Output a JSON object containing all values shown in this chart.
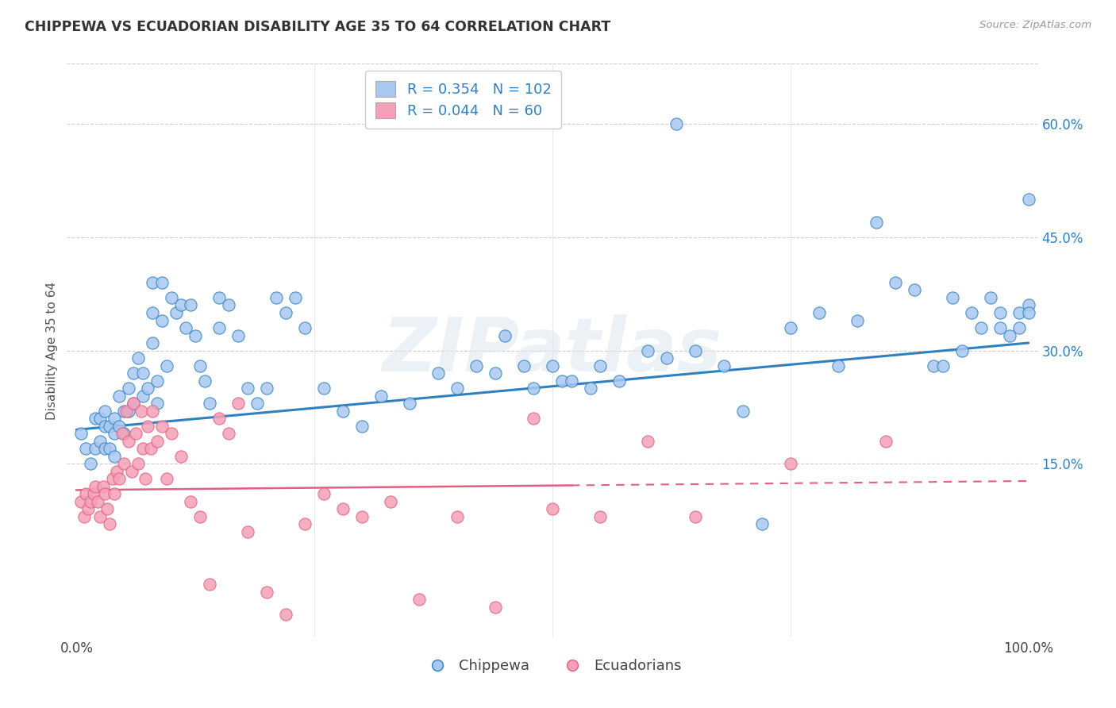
{
  "title": "CHIPPEWA VS ECUADORIAN DISABILITY AGE 35 TO 64 CORRELATION CHART",
  "source": "Source: ZipAtlas.com",
  "ylabel": "Disability Age 35 to 64",
  "legend_labels": [
    "Chippewa",
    "Ecuadorians"
  ],
  "chippewa_color": "#A8C8F0",
  "ecuadorian_color": "#F5A0B8",
  "chippewa_line_color": "#3080C0",
  "ecuadorian_line_color": "#E06080",
  "chippewa_R": "0.354",
  "chippewa_N": "102",
  "ecuadorian_R": "0.044",
  "ecuadorian_N": "60",
  "background_color": "#ffffff",
  "watermark": "ZIPatlas",
  "xlim": [
    -0.01,
    1.01
  ],
  "ylim": [
    -0.08,
    0.68
  ],
  "xticks": [
    0.0,
    0.25,
    0.5,
    0.75,
    1.0
  ],
  "xtick_labels": [
    "0.0%",
    "",
    "",
    "",
    "100.0%"
  ],
  "yticks": [
    0.15,
    0.3,
    0.45,
    0.6
  ],
  "ytick_labels": [
    "15.0%",
    "30.0%",
    "45.0%",
    "60.0%"
  ],
  "chippewa_x": [
    0.005,
    0.01,
    0.015,
    0.02,
    0.02,
    0.025,
    0.025,
    0.03,
    0.03,
    0.03,
    0.035,
    0.035,
    0.04,
    0.04,
    0.04,
    0.045,
    0.045,
    0.05,
    0.05,
    0.055,
    0.055,
    0.06,
    0.06,
    0.065,
    0.07,
    0.07,
    0.075,
    0.08,
    0.08,
    0.08,
    0.085,
    0.085,
    0.09,
    0.09,
    0.095,
    0.1,
    0.105,
    0.11,
    0.115,
    0.12,
    0.125,
    0.13,
    0.135,
    0.14,
    0.15,
    0.15,
    0.16,
    0.17,
    0.18,
    0.19,
    0.2,
    0.21,
    0.22,
    0.23,
    0.24,
    0.26,
    0.28,
    0.3,
    0.32,
    0.35,
    0.38,
    0.4,
    0.42,
    0.44,
    0.45,
    0.47,
    0.48,
    0.5,
    0.51,
    0.52,
    0.54,
    0.55,
    0.57,
    0.6,
    0.62,
    0.63,
    0.65,
    0.68,
    0.7,
    0.72,
    0.75,
    0.78,
    0.8,
    0.82,
    0.84,
    0.86,
    0.88,
    0.9,
    0.91,
    0.92,
    0.93,
    0.94,
    0.95,
    0.96,
    0.97,
    0.97,
    0.98,
    0.99,
    0.99,
    1.0,
    1.0,
    1.0
  ],
  "chippewa_y": [
    0.19,
    0.17,
    0.15,
    0.21,
    0.17,
    0.21,
    0.18,
    0.22,
    0.2,
    0.17,
    0.2,
    0.17,
    0.21,
    0.19,
    0.16,
    0.24,
    0.2,
    0.22,
    0.19,
    0.25,
    0.22,
    0.27,
    0.23,
    0.29,
    0.27,
    0.24,
    0.25,
    0.39,
    0.35,
    0.31,
    0.26,
    0.23,
    0.39,
    0.34,
    0.28,
    0.37,
    0.35,
    0.36,
    0.33,
    0.36,
    0.32,
    0.28,
    0.26,
    0.23,
    0.37,
    0.33,
    0.36,
    0.32,
    0.25,
    0.23,
    0.25,
    0.37,
    0.35,
    0.37,
    0.33,
    0.25,
    0.22,
    0.2,
    0.24,
    0.23,
    0.27,
    0.25,
    0.28,
    0.27,
    0.32,
    0.28,
    0.25,
    0.28,
    0.26,
    0.26,
    0.25,
    0.28,
    0.26,
    0.3,
    0.29,
    0.6,
    0.3,
    0.28,
    0.22,
    0.07,
    0.33,
    0.35,
    0.28,
    0.34,
    0.47,
    0.39,
    0.38,
    0.28,
    0.28,
    0.37,
    0.3,
    0.35,
    0.33,
    0.37,
    0.35,
    0.33,
    0.32,
    0.35,
    0.33,
    0.36,
    0.35,
    0.5
  ],
  "ecuadorian_x": [
    0.005,
    0.008,
    0.01,
    0.012,
    0.015,
    0.018,
    0.02,
    0.022,
    0.025,
    0.028,
    0.03,
    0.032,
    0.035,
    0.038,
    0.04,
    0.042,
    0.045,
    0.048,
    0.05,
    0.052,
    0.055,
    0.058,
    0.06,
    0.062,
    0.065,
    0.068,
    0.07,
    0.072,
    0.075,
    0.078,
    0.08,
    0.085,
    0.09,
    0.095,
    0.1,
    0.11,
    0.12,
    0.13,
    0.14,
    0.15,
    0.16,
    0.17,
    0.18,
    0.2,
    0.22,
    0.24,
    0.26,
    0.28,
    0.3,
    0.33,
    0.36,
    0.4,
    0.44,
    0.48,
    0.5,
    0.55,
    0.6,
    0.65,
    0.75,
    0.85
  ],
  "ecuadorian_y": [
    0.1,
    0.08,
    0.11,
    0.09,
    0.1,
    0.11,
    0.12,
    0.1,
    0.08,
    0.12,
    0.11,
    0.09,
    0.07,
    0.13,
    0.11,
    0.14,
    0.13,
    0.19,
    0.15,
    0.22,
    0.18,
    0.14,
    0.23,
    0.19,
    0.15,
    0.22,
    0.17,
    0.13,
    0.2,
    0.17,
    0.22,
    0.18,
    0.2,
    0.13,
    0.19,
    0.16,
    0.1,
    0.08,
    -0.01,
    0.21,
    0.19,
    0.23,
    0.06,
    -0.02,
    -0.05,
    0.07,
    0.11,
    0.09,
    0.08,
    0.1,
    -0.03,
    0.08,
    -0.04,
    0.21,
    0.09,
    0.08,
    0.18,
    0.08,
    0.15,
    0.18
  ]
}
